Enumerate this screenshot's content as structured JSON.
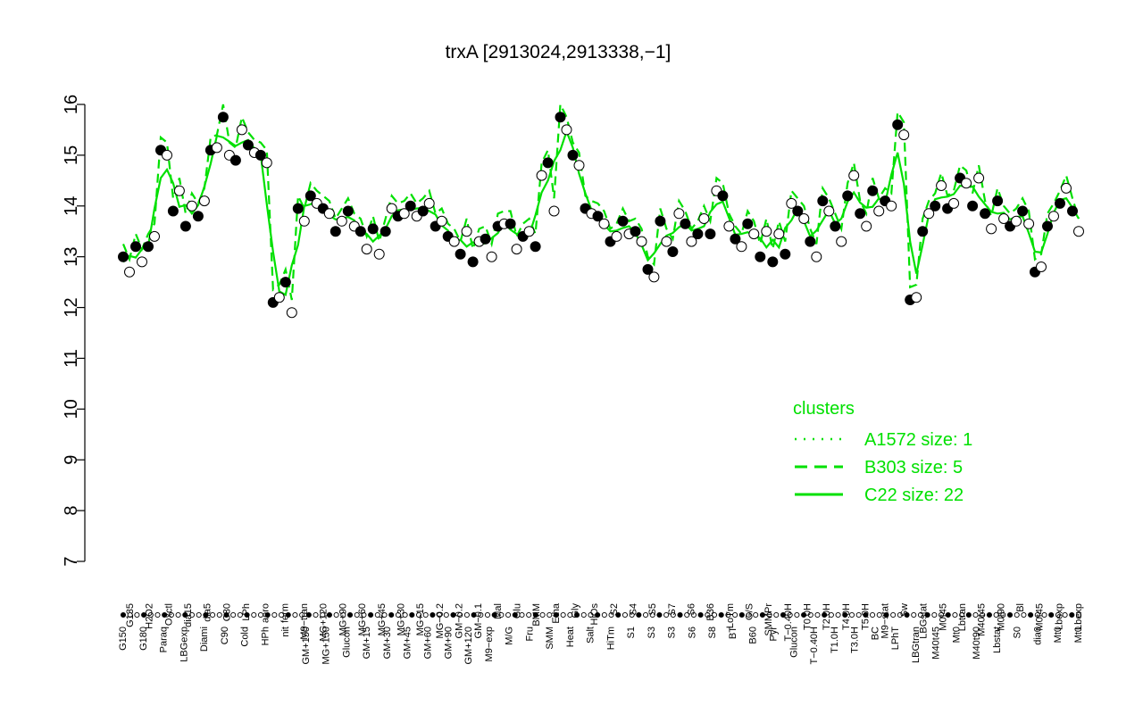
{
  "chart_data": {
    "type": "scatter",
    "title": "trxA [2913024,2913338,−1]",
    "xlabel": "",
    "ylabel": "",
    "ylim": [
      7,
      16
    ],
    "yticks": [
      "7",
      "8",
      "9",
      "10",
      "11",
      "12",
      "13",
      "14",
      "15",
      "16"
    ],
    "categories_top": [
      "G135",
      "H2O2",
      "Oxctl",
      "dia15",
      "dia5",
      "C30",
      "LPh",
      "aero",
      "ferm",
      "M9−tran",
      "MG+120",
      "MG+90",
      "MG+60",
      "MG+45",
      "MG+30",
      "MG+15",
      "MG−0.2",
      "GM−0.2",
      "GM−0.1",
      "Mal",
      "Glu",
      "BMM",
      "Etha",
      "Gly",
      "HiOs",
      "S2",
      "S4",
      "S5",
      "S7",
      "S6",
      "B36",
      "LoTm",
      "G/S",
      "SMMPr",
      "T−0.40H",
      "T0.0H",
      "T2.0H",
      "T4.0H",
      "T5.0H",
      "M9−stat",
      "Sw",
      "LBGstat",
      "M0t45",
      "Lbtran",
      "M40t45",
      "M0t90",
      "Bl",
      "M0t45",
      "Lbexp",
      "Lbexp"
    ],
    "categories_bottom": [
      "G150",
      "G180",
      "Paraq",
      "LBGexp",
      "Diami",
      "C90",
      "Cold",
      "HPh",
      "nit",
      "GM+150",
      "MG+150",
      "Glucon",
      "GM+15",
      "GM+30",
      "GM+45",
      "GM+60",
      "GM+90",
      "GM+120",
      "M9−exp",
      "M/G",
      "Fru",
      "SMM",
      "Heat",
      "Salt",
      "HiTm",
      "S1",
      "S3",
      "S3",
      "S6",
      "S8",
      "BT",
      "B60",
      "Pyr",
      "Glucon",
      "T−0.40H",
      "T1.0H",
      "T3.0H",
      "BC",
      "LPhT",
      "LBGtran",
      "M40t45",
      "Mt0",
      "M40t90",
      "Lbstat",
      "S0",
      "dia0",
      "Mt0",
      "Mt0"
    ],
    "points": [
      {
        "x": "G150",
        "y": 13.0
      },
      {
        "x": "G150",
        "y": 12.7
      },
      {
        "x": "G150",
        "y": 13.2
      },
      {
        "x": "G180",
        "y": 12.9
      },
      {
        "x": "G180",
        "y": 13.2
      },
      {
        "x": "G135",
        "y": 13.4
      },
      {
        "x": "H2O2",
        "y": 15.1
      },
      {
        "x": "H2O2",
        "y": 15.0
      },
      {
        "x": "Paraq",
        "y": 13.9
      },
      {
        "x": "Paraq",
        "y": 14.3
      },
      {
        "x": "Oxctl",
        "y": 13.6
      },
      {
        "x": "Oxctl",
        "y": 14.0
      },
      {
        "x": "LBGexp",
        "y": 13.8
      },
      {
        "x": "LBGexp",
        "y": 14.1
      },
      {
        "x": "dia15",
        "y": 15.1
      },
      {
        "x": "dia15",
        "y": 15.15
      },
      {
        "x": "Diami",
        "y": 15.75
      },
      {
        "x": "Diami",
        "y": 15.0
      },
      {
        "x": "Diami",
        "y": 14.9
      },
      {
        "x": "dia5",
        "y": 15.5
      },
      {
        "x": "dia5",
        "y": 15.2
      },
      {
        "x": "dia5",
        "y": 15.05
      },
      {
        "x": "C90",
        "y": 15.0
      },
      {
        "x": "C90",
        "y": 14.85
      },
      {
        "x": "C30",
        "y": 12.1
      },
      {
        "x": "C30",
        "y": 12.2
      },
      {
        "x": "Cold",
        "y": 12.5
      },
      {
        "x": "Cold",
        "y": 11.9
      },
      {
        "x": "LPh",
        "y": 13.95
      },
      {
        "x": "LPh",
        "y": 13.7
      },
      {
        "x": "HPh",
        "y": 14.2
      },
      {
        "x": "HPh",
        "y": 14.05
      },
      {
        "x": "aero",
        "y": 13.95
      },
      {
        "x": "aero",
        "y": 13.85
      },
      {
        "x": "nit",
        "y": 13.5
      },
      {
        "x": "nit",
        "y": 13.7
      },
      {
        "x": "ferm",
        "y": 13.9
      },
      {
        "x": "ferm",
        "y": 13.6
      },
      {
        "x": "GM+150",
        "y": 13.5
      },
      {
        "x": "GM+150",
        "y": 13.15
      },
      {
        "x": "M9−tran",
        "y": 13.55
      },
      {
        "x": "MG+150",
        "y": 13.05
      },
      {
        "x": "MG+150",
        "y": 13.5
      },
      {
        "x": "MG+120",
        "y": 13.95
      },
      {
        "x": "MG+90",
        "y": 13.8
      },
      {
        "x": "MG+60",
        "y": 13.85
      },
      {
        "x": "MG+45",
        "y": 14.0
      },
      {
        "x": "MG+30",
        "y": 13.8
      },
      {
        "x": "MG+15",
        "y": 13.9
      },
      {
        "x": "MG−0.2",
        "y": 14.05
      },
      {
        "x": "MG−0.2",
        "y": 13.6
      },
      {
        "x": "Glucon",
        "y": 13.7
      },
      {
        "x": "GM−0.2",
        "y": 13.4
      },
      {
        "x": "GM−0.1",
        "y": 13.3
      },
      {
        "x": "GM+15",
        "y": 13.05
      },
      {
        "x": "GM+30",
        "y": 13.5
      },
      {
        "x": "GM+45",
        "y": 12.9
      },
      {
        "x": "GM+60",
        "y": 13.3
      },
      {
        "x": "GM+90",
        "y": 13.35
      },
      {
        "x": "GM+120",
        "y": 13.0
      },
      {
        "x": "M9−exp",
        "y": 13.6
      },
      {
        "x": "M/G",
        "y": 13.65
      },
      {
        "x": "Mal",
        "y": 13.65
      },
      {
        "x": "Fru",
        "y": 13.15
      },
      {
        "x": "Glu",
        "y": 13.4
      },
      {
        "x": "SMM",
        "y": 13.5
      },
      {
        "x": "BMM",
        "y": 13.2
      },
      {
        "x": "Heat",
        "y": 14.6
      },
      {
        "x": "Heat",
        "y": 14.85
      },
      {
        "x": "Heat",
        "y": 13.9
      },
      {
        "x": "Etha",
        "y": 15.75
      },
      {
        "x": "Etha",
        "y": 15.5
      },
      {
        "x": "Salt",
        "y": 15.0
      },
      {
        "x": "Salt",
        "y": 14.8
      },
      {
        "x": "Gly",
        "y": 13.95
      },
      {
        "x": "Gly",
        "y": 13.85
      },
      {
        "x": "HiTm",
        "y": 13.8
      },
      {
        "x": "HiTm",
        "y": 13.65
      },
      {
        "x": "HiOs",
        "y": 13.3
      },
      {
        "x": "HiOs",
        "y": 13.4
      },
      {
        "x": "S1",
        "y": 13.7
      },
      {
        "x": "S1",
        "y": 13.45
      },
      {
        "x": "S2",
        "y": 13.5
      },
      {
        "x": "S2",
        "y": 13.3
      },
      {
        "x": "S3",
        "y": 12.75
      },
      {
        "x": "S3",
        "y": 12.6
      },
      {
        "x": "S4",
        "y": 13.7
      },
      {
        "x": "S4",
        "y": 13.3
      },
      {
        "x": "S3",
        "y": 13.1
      },
      {
        "x": "S5",
        "y": 13.85
      },
      {
        "x": "S5",
        "y": 13.65
      },
      {
        "x": "S6",
        "y": 13.3
      },
      {
        "x": "S6",
        "y": 13.45
      },
      {
        "x": "S7",
        "y": 13.75
      },
      {
        "x": "S8",
        "y": 13.45
      },
      {
        "x": "S6",
        "y": 14.3
      },
      {
        "x": "S6",
        "y": 14.2
      },
      {
        "x": "BT",
        "y": 13.6
      },
      {
        "x": "B36",
        "y": 13.35
      },
      {
        "x": "B36",
        "y": 13.2
      },
      {
        "x": "B60",
        "y": 13.65
      },
      {
        "x": "LoTm",
        "y": 13.45
      },
      {
        "x": "LoTm",
        "y": 13.0
      },
      {
        "x": "Pyr",
        "y": 13.5
      },
      {
        "x": "Pyr",
        "y": 12.9
      },
      {
        "x": "G/S",
        "y": 13.45
      },
      {
        "x": "Glucon",
        "y": 13.05
      },
      {
        "x": "SMMPr",
        "y": 14.05
      },
      {
        "x": "SMMPr",
        "y": 13.9
      },
      {
        "x": "T−0.40H",
        "y": 13.75
      },
      {
        "x": "T−0.40H",
        "y": 13.3
      },
      {
        "x": "T−0.40H",
        "y": 13.0
      },
      {
        "x": "T0.0H",
        "y": 14.1
      },
      {
        "x": "T1.0H",
        "y": 13.9
      },
      {
        "x": "T2.0H",
        "y": 13.6
      },
      {
        "x": "T3.0H",
        "y": 13.3
      },
      {
        "x": "T4.0H",
        "y": 14.2
      },
      {
        "x": "T5.0H",
        "y": 14.6
      },
      {
        "x": "M9−stat",
        "y": 13.85
      },
      {
        "x": "M9−stat",
        "y": 13.6
      },
      {
        "x": "BC",
        "y": 14.3
      },
      {
        "x": "BC",
        "y": 13.9
      },
      {
        "x": "Sw",
        "y": 14.1
      },
      {
        "x": "Sw",
        "y": 14.0
      },
      {
        "x": "LPhT",
        "y": 15.6
      },
      {
        "x": "LPhT",
        "y": 15.4
      },
      {
        "x": "LBGstat",
        "y": 12.15
      },
      {
        "x": "LBGstat",
        "y": 12.2
      },
      {
        "x": "LBGstat",
        "y": 13.5
      },
      {
        "x": "LBGtran",
        "y": 13.85
      },
      {
        "x": "LBGtran",
        "y": 14.0
      },
      {
        "x": "M0t45",
        "y": 14.4
      },
      {
        "x": "M40t45",
        "y": 13.95
      },
      {
        "x": "M40t45",
        "y": 14.05
      },
      {
        "x": "Lbtran",
        "y": 14.55
      },
      {
        "x": "Lbtran",
        "y": 14.45
      },
      {
        "x": "Mt0",
        "y": 14.0
      },
      {
        "x": "M40t45",
        "y": 14.55
      },
      {
        "x": "M40t90",
        "y": 13.85
      },
      {
        "x": "M40t90",
        "y": 13.55
      },
      {
        "x": "M0t90",
        "y": 14.1
      },
      {
        "x": "M0t90",
        "y": 13.75
      },
      {
        "x": "Lbstat",
        "y": 13.6
      },
      {
        "x": "Lbstat",
        "y": 13.7
      },
      {
        "x": "Bl",
        "y": 13.9
      },
      {
        "x": "Bl",
        "y": 13.65
      },
      {
        "x": "S0",
        "y": 12.7
      },
      {
        "x": "S0",
        "y": 12.8
      },
      {
        "x": "dia0",
        "y": 13.6
      },
      {
        "x": "dia0",
        "y": 13.8
      },
      {
        "x": "M0t45",
        "y": 14.05
      },
      {
        "x": "Lbexp",
        "y": 14.35
      },
      {
        "x": "Lbexp",
        "y": 13.9
      },
      {
        "x": "Mt0",
        "y": 13.5
      }
    ],
    "series": [
      {
        "name": "A1572 size: 1",
        "style": "dotted",
        "color": "#00e000"
      },
      {
        "name": "B303 size: 5",
        "style": "dashed",
        "color": "#00e000"
      },
      {
        "name": "C22 size: 22",
        "style": "solid",
        "color": "#00e000"
      }
    ],
    "legend": {
      "title": "clusters",
      "placement": "bottom-right"
    },
    "grid": false
  }
}
